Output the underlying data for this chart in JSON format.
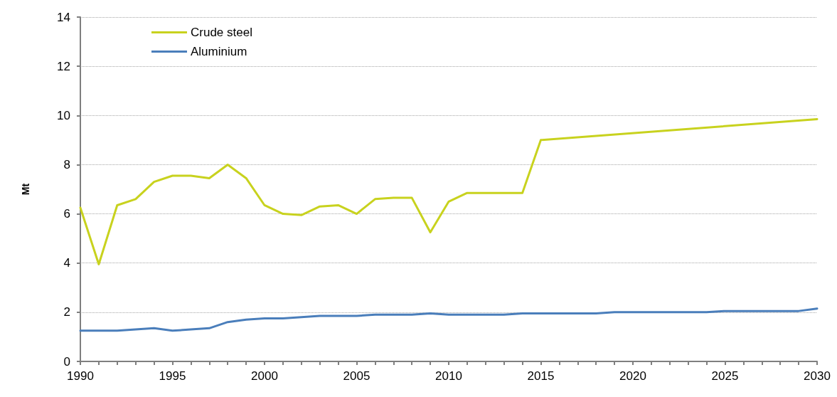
{
  "chart_data": {
    "type": "line",
    "ylabel": "Mt",
    "series": [
      {
        "name": "Crude steel",
        "color": "#c8d21e",
        "x": [
          1990,
          1991,
          1992,
          1993,
          1994,
          1995,
          1996,
          1997,
          1998,
          1999,
          2000,
          2001,
          2002,
          2003,
          2004,
          2005,
          2006,
          2007,
          2008,
          2009,
          2010,
          2011,
          2012,
          2013,
          2014,
          2015,
          2030
        ],
        "values": [
          6.25,
          3.95,
          6.35,
          6.6,
          7.3,
          7.55,
          7.55,
          7.45,
          8.0,
          7.45,
          6.35,
          6.0,
          5.95,
          6.3,
          6.35,
          6.0,
          6.6,
          6.65,
          6.65,
          5.25,
          6.5,
          6.85,
          6.85,
          6.85,
          6.85,
          9.0,
          9.85
        ]
      },
      {
        "name": "Aluminium",
        "color": "#4a7ebb",
        "x": [
          1990,
          1991,
          1992,
          1993,
          1994,
          1995,
          1996,
          1997,
          1998,
          1999,
          2000,
          2001,
          2002,
          2003,
          2004,
          2005,
          2006,
          2007,
          2008,
          2009,
          2010,
          2011,
          2012,
          2013,
          2014,
          2015,
          2016,
          2017,
          2018,
          2019,
          2020,
          2021,
          2022,
          2023,
          2024,
          2025,
          2026,
          2027,
          2028,
          2029,
          2030
        ],
        "values": [
          1.25,
          1.25,
          1.25,
          1.3,
          1.35,
          1.25,
          1.3,
          1.35,
          1.6,
          1.7,
          1.75,
          1.75,
          1.8,
          1.85,
          1.85,
          1.85,
          1.9,
          1.9,
          1.9,
          1.95,
          1.9,
          1.9,
          1.9,
          1.9,
          1.95,
          1.95,
          1.95,
          1.95,
          1.95,
          2.0,
          2.0,
          2.0,
          2.0,
          2.0,
          2.0,
          2.05,
          2.05,
          2.05,
          2.05,
          2.05,
          2.15
        ]
      }
    ],
    "xlim": [
      1990,
      2030
    ],
    "xticks": [
      1990,
      {
        "value": 1991,
        "label": null
      },
      {
        "value": 1992,
        "label": null
      },
      {
        "value": 1993,
        "label": null
      },
      {
        "value": 1994,
        "label": null
      },
      1995,
      {
        "value": 1996,
        "label": null
      },
      {
        "value": 1997,
        "label": null
      },
      {
        "value": 1998,
        "label": null
      },
      {
        "value": 1999,
        "label": null
      },
      2000,
      {
        "value": 2001,
        "label": null
      },
      {
        "value": 2002,
        "label": null
      },
      {
        "value": 2003,
        "label": null
      },
      {
        "value": 2004,
        "label": null
      },
      2005,
      {
        "value": 2006,
        "label": null
      },
      {
        "value": 2007,
        "label": null
      },
      {
        "value": 2008,
        "label": null
      },
      {
        "value": 2009,
        "label": null
      },
      2010,
      {
        "value": 2011,
        "label": null
      },
      {
        "value": 2012,
        "label": null
      },
      {
        "value": 2013,
        "label": null
      },
      {
        "value": 2014,
        "label": null
      },
      2015,
      {
        "value": 2016,
        "label": null
      },
      {
        "value": 2017,
        "label": null
      },
      {
        "value": 2018,
        "label": null
      },
      {
        "value": 2019,
        "label": null
      },
      2020,
      {
        "value": 2021,
        "label": null
      },
      {
        "value": 2022,
        "label": null
      },
      {
        "value": 2023,
        "label": null
      },
      {
        "value": 2024,
        "label": null
      },
      2025,
      {
        "value": 2026,
        "label": null
      },
      {
        "value": 2027,
        "label": null
      },
      {
        "value": 2028,
        "label": null
      },
      {
        "value": 2029,
        "label": null
      },
      2030
    ],
    "ylim": [
      0,
      14
    ],
    "yticks": [
      0,
      2,
      4,
      6,
      8,
      10,
      12,
      14
    ],
    "grid": "y",
    "legend": "top left",
    "marker": "none",
    "line_style": "solid"
  }
}
